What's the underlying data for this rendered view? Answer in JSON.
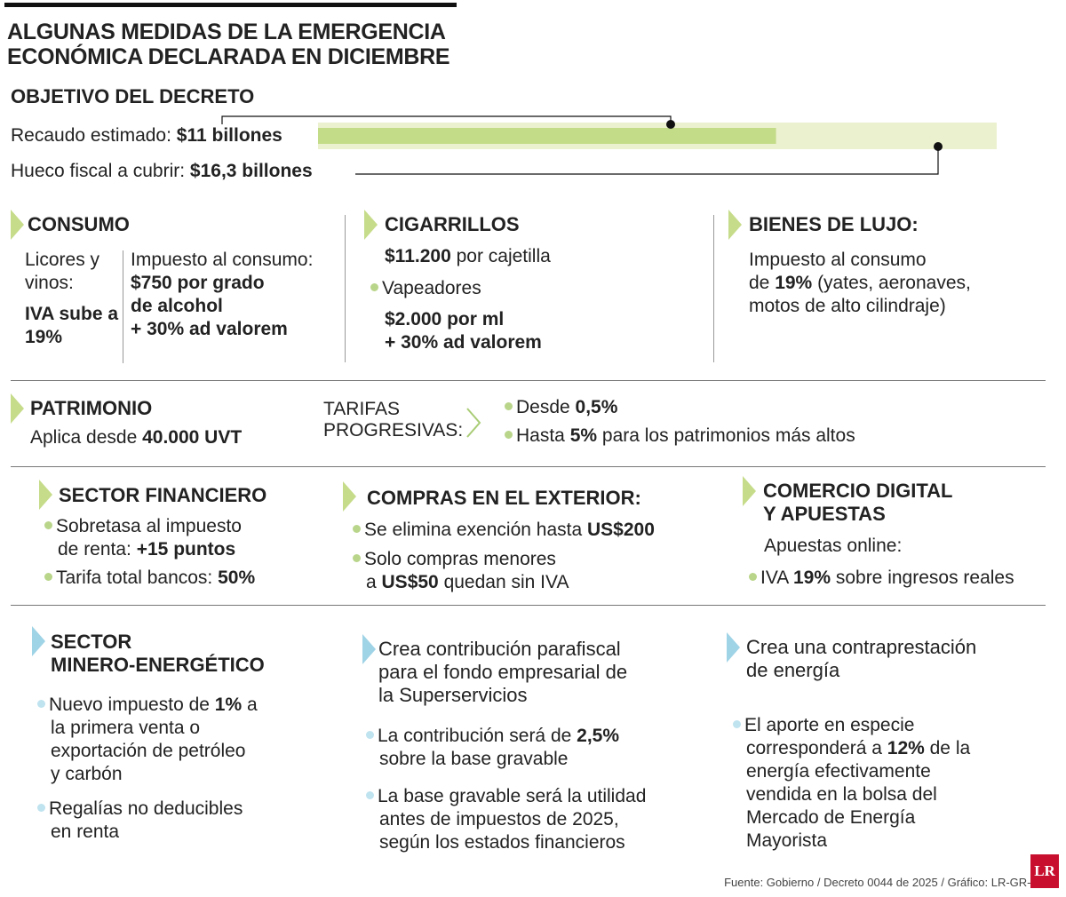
{
  "title": "ALGUNAS MEDIDAS DE LA EMERGENCIA ECONÓMICA DECLARADA EN DICIEMBRE",
  "objetivo": {
    "heading": "OBJETIVO DEL DECRETO",
    "recaudo_label": "Recaudo estimado: ",
    "recaudo_value": "$11 billones",
    "hueco_label": "Hueco fiscal a cubrir: ",
    "hueco_value": "$16,3 billones"
  },
  "chart_data": {
    "type": "bar",
    "categories": [
      "Recaudo estimado",
      "Hueco fiscal a cubrir"
    ],
    "values": [
      11,
      16.3
    ],
    "unit": "billones",
    "colors": [
      "#c3dc88",
      "#ebf1cf"
    ]
  },
  "consumo": {
    "heading": "CONSUMO",
    "licores_label": "Licores y vinos:",
    "iva": "IVA sube a 19%",
    "impuesto_label": "Impuesto al consumo:",
    "grado": "$750 por grado de alcohol",
    "ad_valorem": "+ 30% ad valorem"
  },
  "cigarrillos": {
    "heading": "CIGARRILLOS",
    "precio": "$11.200",
    "precio_suffix": " por cajetilla",
    "vapeadores": "Vapeadores",
    "ml": "$2.000 por ml",
    "ad_valorem": "+ 30% ad valorem"
  },
  "lujo": {
    "heading": "BIENES DE LUJO:",
    "line1": "Impuesto al consumo",
    "line2_pre": "de ",
    "line2_bold": "19%",
    "line2_post": " (yates, aeronaves,",
    "line3": "motos de alto cilindraje)"
  },
  "patrimonio": {
    "heading": "PATRIMONIO",
    "aplica_pre": "Aplica desde ",
    "aplica_bold": "40.000 UVT",
    "tarifas": "TARIFAS PROGRESIVAS:",
    "desde_pre": "Desde ",
    "desde_bold": "0,5%",
    "hasta_pre": "Hasta ",
    "hasta_bold": "5%",
    "hasta_post": " para los patrimonios más altos"
  },
  "financiero": {
    "heading": "SECTOR FINANCIERO",
    "b1_a": "Sobretasa al impuesto",
    "b1_b": "de renta: ",
    "b1_bold": "+15 puntos",
    "b2_pre": "Tarifa total bancos: ",
    "b2_bold": "50%"
  },
  "compras": {
    "heading": "COMPRAS EN EL EXTERIOR:",
    "b1_pre": "Se elimina exención hasta ",
    "b1_bold": "US$200",
    "b2_a": "Solo compras menores",
    "b2_pre": "a ",
    "b2_bold": "US$50",
    "b2_post": " quedan sin IVA"
  },
  "digital": {
    "heading1": "COMERCIO DIGITAL",
    "heading2": "Y APUESTAS",
    "apuestas": "Apuestas online:",
    "iva_pre": "IVA ",
    "iva_bold": "19%",
    "iva_post": " sobre ingresos reales"
  },
  "minero": {
    "heading1": "SECTOR",
    "heading2": "MINERO-ENERGÉTICO",
    "b1_pre": "Nuevo impuesto de ",
    "b1_bold": "1%",
    "b1_post": " a",
    "b1_l2": "la primera venta o",
    "b1_l3": "exportación de petróleo",
    "b1_l4": "y carbón",
    "b2_l1": "Regalías no deducibles",
    "b2_l2": "en renta"
  },
  "parafiscal": {
    "heading1": "Crea contribución parafiscal",
    "heading2": "para el fondo empresarial de",
    "heading3": "la Superservicios",
    "b1_pre": "La contribución será de ",
    "b1_bold": "2,5%",
    "b1_l2": "sobre la base gravable",
    "b2_l1": "La base gravable será la utilidad",
    "b2_l2": "antes de impuestos de 2025,",
    "b2_l3": "según los estados financieros"
  },
  "energia": {
    "heading1": "Crea una contraprestación",
    "heading2": "de energía",
    "b1_l1": "El aporte en especie",
    "b1_pre": "corresponderá a ",
    "b1_bold": "12%",
    "b1_post": " de la",
    "b1_l3": "energía efectivamente",
    "b1_l4": "vendida en la bolsa del",
    "b1_l5": "Mercado de Energía",
    "b1_l6": "Mayorista"
  },
  "source": "Fuente: Gobierno / Decreto 0044 de 2025 / Gráfico: LR-GR-MB",
  "logo": "LR"
}
